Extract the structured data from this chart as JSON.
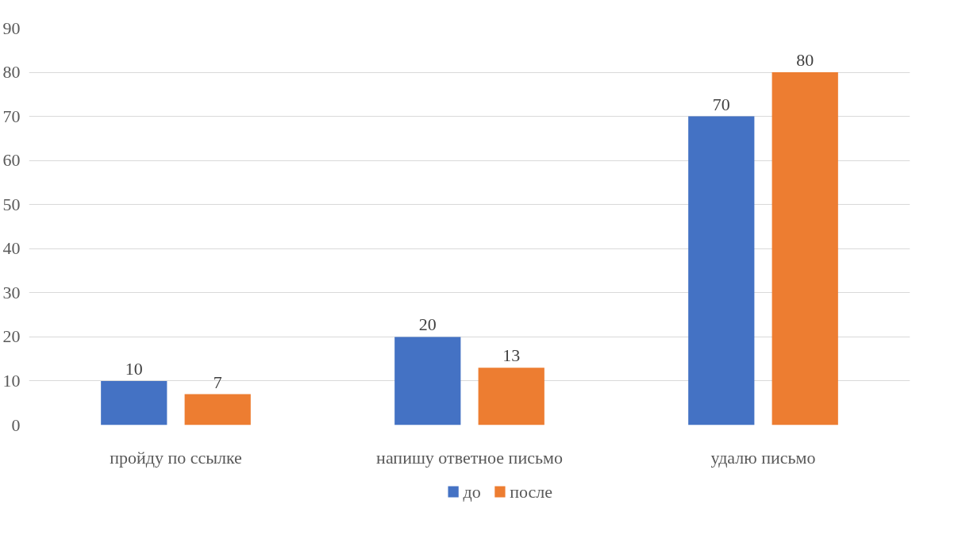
{
  "chart_data": {
    "type": "bar",
    "categories": [
      "пройду по ссылке",
      "напишу ответное письмо",
      "удалю письмо"
    ],
    "series": [
      {
        "name": "до",
        "color": "#4472c4",
        "values": [
          10,
          20,
          70
        ]
      },
      {
        "name": "после",
        "color": "#ed7d31",
        "values": [
          7,
          13,
          80
        ]
      }
    ],
    "ylim": [
      0,
      90
    ],
    "yticks": [
      0,
      10,
      20,
      30,
      40,
      50,
      60,
      70,
      80,
      90
    ],
    "grid": "y",
    "legend": "bottom",
    "data_labels": true
  }
}
